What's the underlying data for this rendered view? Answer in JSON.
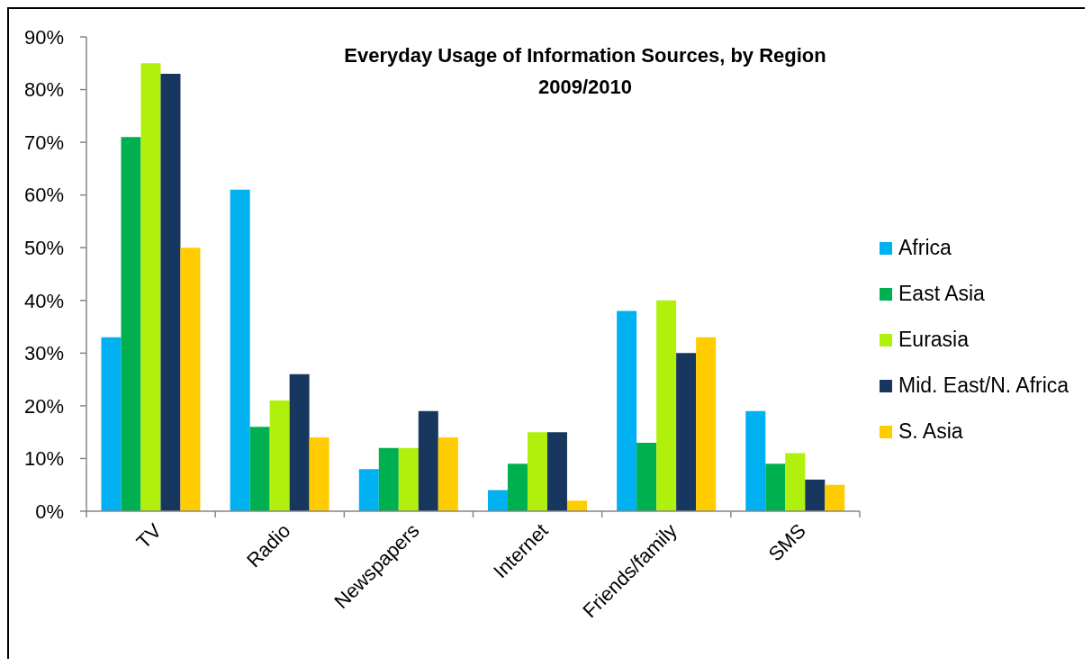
{
  "chart_data": {
    "type": "bar",
    "title": "Everyday Usage of Information Sources, by Region\n2009/2010",
    "categories": [
      "TV",
      "Radio",
      "Newspapers",
      "Internet",
      "Friends/family",
      "SMS"
    ],
    "series": [
      {
        "name": "Africa",
        "color": "#00b0f0",
        "values": [
          33,
          61,
          8,
          4,
          38,
          19
        ]
      },
      {
        "name": "East Asia",
        "color": "#00b050",
        "values": [
          71,
          16,
          12,
          9,
          13,
          9
        ]
      },
      {
        "name": "Eurasia",
        "color": "#b0f00c",
        "values": [
          85,
          21,
          12,
          15,
          40,
          11
        ]
      },
      {
        "name": "Mid. East/N. Africa",
        "color": "#17375e",
        "values": [
          83,
          26,
          19,
          15,
          30,
          6
        ]
      },
      {
        "name": "S. Asia",
        "color": "#ffcc00",
        "values": [
          50,
          14,
          14,
          2,
          33,
          5
        ]
      }
    ],
    "ylim": [
      0,
      90
    ],
    "yticks": [
      {
        "value": 0,
        "label": "0%"
      },
      {
        "value": 10,
        "label": "10%"
      },
      {
        "value": 20,
        "label": "20%"
      },
      {
        "value": 30,
        "label": "30%"
      },
      {
        "value": 40,
        "label": "40%"
      },
      {
        "value": 50,
        "label": "50%"
      },
      {
        "value": 60,
        "label": "60%"
      },
      {
        "value": 70,
        "label": "70%"
      },
      {
        "value": 80,
        "label": "80%"
      },
      {
        "value": 90,
        "label": "90%"
      }
    ],
    "legend": "right"
  }
}
